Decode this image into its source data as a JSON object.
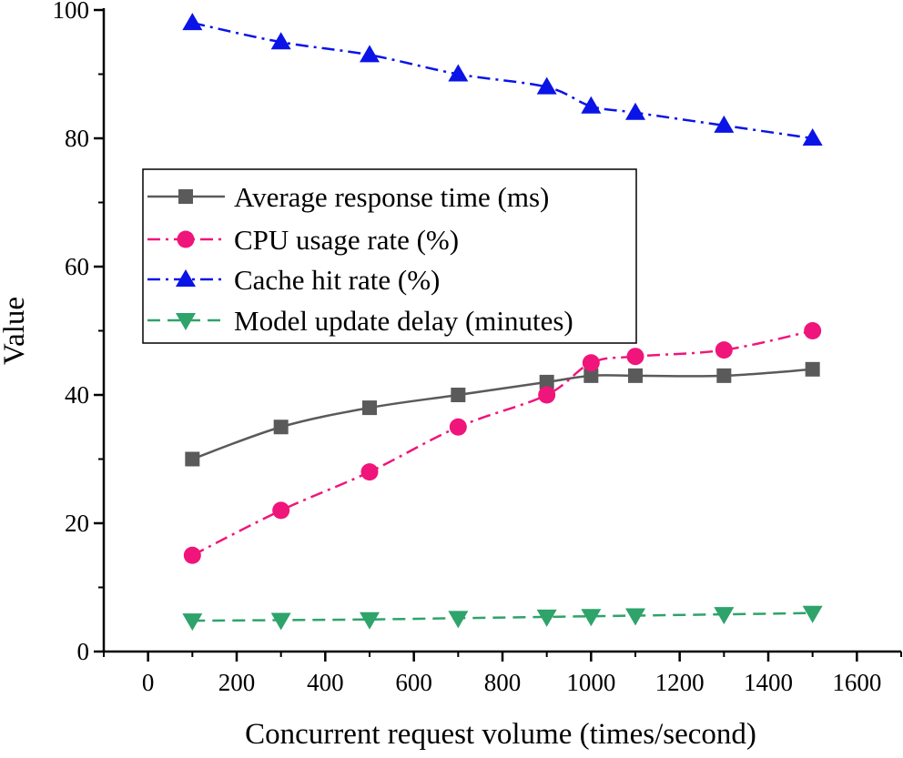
{
  "chart_data": {
    "type": "line",
    "title": "",
    "xlabel": "Concurrent request volume (times/second)",
    "ylabel": "Value",
    "xlim": [
      -100,
      1700
    ],
    "ylim": [
      0,
      100
    ],
    "xticks": [
      0,
      200,
      400,
      600,
      800,
      1000,
      1200,
      1400,
      1600
    ],
    "xticks_minor": [
      -100,
      100,
      300,
      500,
      700,
      900,
      1100,
      1300,
      1500,
      1700
    ],
    "yticks": [
      0,
      20,
      40,
      60,
      80,
      100
    ],
    "yticks_minor": [
      10,
      30,
      50,
      70,
      90
    ],
    "grid": false,
    "legend_position": "center-left",
    "series": [
      {
        "name": "Average response time (ms)",
        "color": "#5a5a5a",
        "marker": "square",
        "dash": "solid",
        "smooth": true,
        "x": [
          100,
          300,
          500,
          700,
          900,
          1000,
          1100,
          1300,
          1500
        ],
        "values": [
          30,
          35,
          38,
          40,
          42,
          43,
          43,
          43,
          44
        ]
      },
      {
        "name": "CPU usage rate (%)",
        "color": "#f0157a",
        "marker": "circle",
        "dash": "dashdot",
        "smooth": true,
        "x": [
          100,
          300,
          500,
          700,
          900,
          1000,
          1100,
          1300,
          1500
        ],
        "values": [
          15,
          22,
          28,
          35,
          40,
          45,
          46,
          47,
          50
        ]
      },
      {
        "name": "Cache hit rate (%)",
        "color": "#0a14e6",
        "marker": "triangle-up",
        "dash": "dashdot",
        "smooth": true,
        "x": [
          100,
          300,
          500,
          700,
          900,
          1000,
          1100,
          1300,
          1500
        ],
        "values": [
          98,
          95,
          93,
          90,
          88,
          85,
          84,
          82,
          80
        ]
      },
      {
        "name": "Model update delay (minutes)",
        "color": "#2ea36a",
        "marker": "triangle-down",
        "dash": "dash",
        "smooth": true,
        "x": [
          100,
          300,
          500,
          700,
          900,
          1000,
          1100,
          1300,
          1500
        ],
        "values": [
          4.8,
          4.9,
          5.0,
          5.2,
          5.4,
          5.5,
          5.6,
          5.8,
          6.0
        ]
      }
    ]
  }
}
